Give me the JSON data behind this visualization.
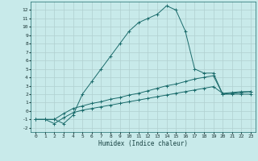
{
  "xlabel": "Humidex (Indice chaleur)",
  "bg_color": "#c8eaea",
  "grid_color": "#b0d0d0",
  "line_color": "#1a6b6b",
  "xlim": [
    -0.5,
    23.5
  ],
  "ylim": [
    -2.5,
    13.0
  ],
  "xticks": [
    0,
    1,
    2,
    3,
    4,
    5,
    6,
    7,
    8,
    9,
    10,
    11,
    12,
    13,
    14,
    15,
    16,
    17,
    18,
    19,
    20,
    21,
    22,
    23
  ],
  "yticks": [
    -2,
    -1,
    0,
    1,
    2,
    3,
    4,
    5,
    6,
    7,
    8,
    9,
    10,
    11,
    12
  ],
  "curve1_x": [
    0,
    1,
    2,
    3,
    4,
    5,
    6,
    7,
    8,
    9,
    10,
    11,
    12,
    13,
    14,
    15,
    16,
    17,
    18,
    19,
    20,
    21,
    22,
    23
  ],
  "curve1_y": [
    -1,
    -1,
    -1,
    -1.5,
    -0.5,
    2.0,
    3.5,
    5.0,
    6.5,
    8.0,
    9.5,
    10.5,
    11.0,
    11.5,
    12.5,
    12.0,
    9.5,
    5.0,
    4.5,
    4.5,
    2.0,
    2.0,
    2.0,
    2.0
  ],
  "curve2_x": [
    0,
    1,
    2,
    3,
    4,
    5,
    6,
    7,
    8,
    9,
    10,
    11,
    12,
    13,
    14,
    15,
    16,
    17,
    18,
    19,
    20,
    21,
    22,
    23
  ],
  "curve2_y": [
    -1,
    -1,
    -1,
    -0.3,
    0.3,
    0.6,
    0.9,
    1.1,
    1.4,
    1.6,
    1.9,
    2.1,
    2.4,
    2.7,
    3.0,
    3.2,
    3.5,
    3.8,
    4.0,
    4.2,
    2.0,
    2.1,
    2.2,
    2.3
  ],
  "curve3_x": [
    0,
    1,
    2,
    3,
    4,
    5,
    6,
    7,
    8,
    9,
    10,
    11,
    12,
    13,
    14,
    15,
    16,
    17,
    18,
    19,
    20,
    21,
    22,
    23
  ],
  "curve3_y": [
    -1,
    -1,
    -1.5,
    -0.8,
    -0.2,
    0.1,
    0.3,
    0.5,
    0.7,
    0.9,
    1.1,
    1.3,
    1.5,
    1.7,
    1.9,
    2.1,
    2.3,
    2.5,
    2.7,
    2.9,
    2.1,
    2.2,
    2.3,
    2.3
  ]
}
